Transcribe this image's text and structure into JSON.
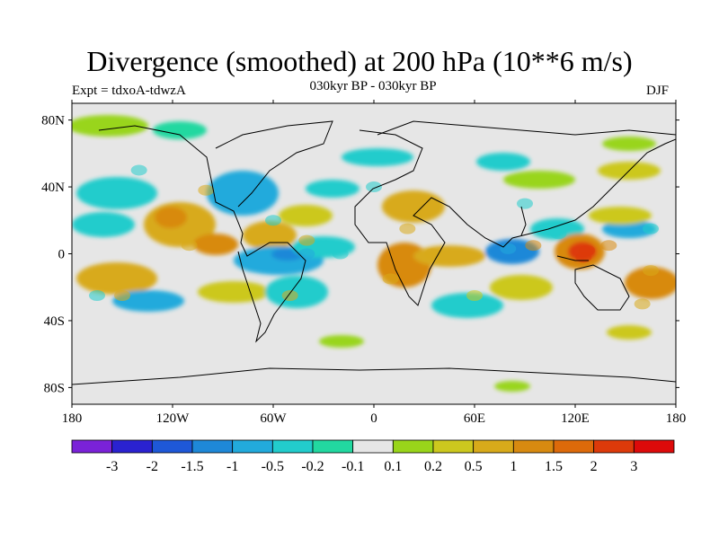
{
  "title": "Divergence (smoothed) at 200 hPa (10**6 m/s)",
  "subtitle_left": "Expt = tdxoA-tdwzA",
  "subtitle_center": "030kyr BP - 030kyr BP",
  "subtitle_right": "DJF",
  "map": {
    "projection": "cylindrical equidistant",
    "lon_range": [
      -180,
      180
    ],
    "lat_range": [
      -90,
      90
    ],
    "lat_ticks": [
      {
        "value": 80,
        "label": "80N"
      },
      {
        "value": 40,
        "label": "40N"
      },
      {
        "value": 0,
        "label": "0"
      },
      {
        "value": -40,
        "label": "40S"
      },
      {
        "value": -80,
        "label": "80S"
      }
    ],
    "lon_ticks": [
      {
        "value": -180,
        "label": "180"
      },
      {
        "value": -120,
        "label": "120W"
      },
      {
        "value": -60,
        "label": "60W"
      },
      {
        "value": 0,
        "label": "0"
      },
      {
        "value": 60,
        "label": "60E"
      },
      {
        "value": 120,
        "label": "120E"
      },
      {
        "value": 180,
        "label": "180"
      }
    ],
    "background_color": "#e6e6e6"
  },
  "colorbar": {
    "colors": [
      "#7a22d8",
      "#2a22d0",
      "#1e58d8",
      "#1e88d8",
      "#22aadc",
      "#22cccc",
      "#22d8a0",
      "#e6e6e6",
      "#99d51a",
      "#ccc81e",
      "#d8aa1a",
      "#d88a10",
      "#dd6a0a",
      "#dd3a0a",
      "#dd0a0a"
    ],
    "labels": [
      "-3",
      "-2",
      "-1.5",
      "-1",
      "-0.5",
      "-0.2",
      "-0.1",
      "0.1",
      "0.2",
      "0.5",
      "1",
      "1.5",
      "2",
      "3"
    ]
  },
  "chart_data": {
    "type": "heatmap",
    "title": "Divergence (smoothed) at 200 hPa (10**6 m/s)",
    "levels": [
      -3,
      -2,
      -1.5,
      -1,
      -0.5,
      -0.2,
      -0.1,
      0.1,
      0.2,
      0.5,
      1,
      1.5,
      2,
      3
    ],
    "features": [
      {
        "lon": 127,
        "lat": 2,
        "value": 2.5
      },
      {
        "lon": 125,
        "lat": -2,
        "value": 2.0
      },
      {
        "lon": 140,
        "lat": 5,
        "value": 1.0
      },
      {
        "lon": 95,
        "lat": 5,
        "value": 1.2
      },
      {
        "lon": 80,
        "lat": 3,
        "value": -1.0
      },
      {
        "lon": 110,
        "lat": 12,
        "value": -0.5
      },
      {
        "lon": -110,
        "lat": 5,
        "value": 0.8
      },
      {
        "lon": -100,
        "lat": 38,
        "value": 0.6
      },
      {
        "lon": -40,
        "lat": 8,
        "value": 0.6
      },
      {
        "lon": -60,
        "lat": 20,
        "value": -0.5
      },
      {
        "lon": -40,
        "lat": 0,
        "value": -1.0
      },
      {
        "lon": -50,
        "lat": -25,
        "value": 0.5
      },
      {
        "lon": -20,
        "lat": 0,
        "value": -0.5
      },
      {
        "lon": 35,
        "lat": 0,
        "value": 0.8
      },
      {
        "lon": 20,
        "lat": 15,
        "value": 0.6
      },
      {
        "lon": 10,
        "lat": -15,
        "value": 0.8
      },
      {
        "lon": -150,
        "lat": -25,
        "value": 0.8
      },
      {
        "lon": -165,
        "lat": -25,
        "value": -0.5
      },
      {
        "lon": 165,
        "lat": -10,
        "value": 0.6
      },
      {
        "lon": 165,
        "lat": 15,
        "value": -0.5
      },
      {
        "lon": 160,
        "lat": -30,
        "value": 0.5
      },
      {
        "lon": 60,
        "lat": -25,
        "value": 0.4
      },
      {
        "lon": 0,
        "lat": 40,
        "value": -0.3
      },
      {
        "lon": 90,
        "lat": 30,
        "value": -0.3
      },
      {
        "lon": -140,
        "lat": 50,
        "value": -0.3
      }
    ]
  }
}
